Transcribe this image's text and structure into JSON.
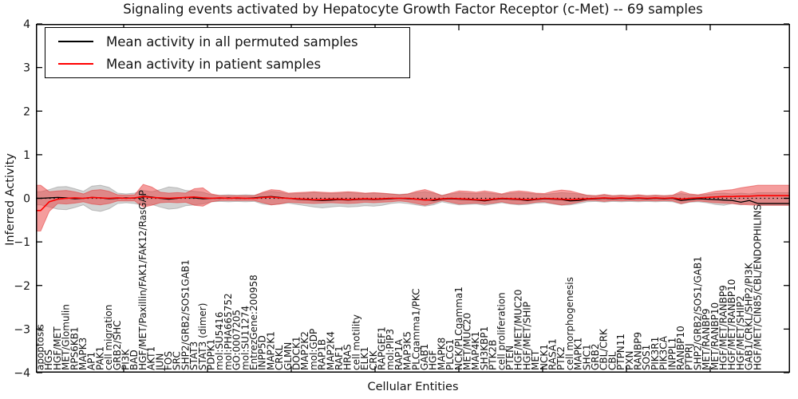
{
  "legend": {
    "items": [
      {
        "label": "Mean activity in all permuted samples",
        "color": "#000000"
      },
      {
        "label": "Mean activity in patient samples",
        "color": "#ff0000"
      }
    ]
  },
  "chart_data": {
    "type": "line",
    "title": "Signaling events activated by Hepatocyte Growth Factor Receptor (c-Met) -- 69 samples",
    "xlabel": "Cellular Entities",
    "ylabel": "Inferred Activity",
    "ylim": [
      -4,
      4
    ],
    "ytick_labels": [
      "4",
      "3",
      "2",
      "1",
      "0",
      "−1",
      "−2",
      "−3",
      "−4"
    ],
    "yticks": [
      4,
      3,
      2,
      1,
      0,
      -1,
      -2,
      -3,
      -4
    ],
    "grid": false,
    "legend_position": "upper left",
    "zero_reference_line": "dotted",
    "categories": [
      "apoptosis",
      "HGS",
      "HGF/MET",
      "MET/Glomulin",
      "RPS6KB1",
      "MAPK3",
      "AP1",
      "PAK1",
      "cell migration",
      "GRB2/SHC",
      "PI3K",
      "BAD",
      "HGF/MET/Paxillin/FAK1/FAK12/RasGAP",
      "AKT1",
      "JUN",
      "FOS",
      "SRC",
      "SHP2/GRB2/SOS1GAB1",
      "STAT3",
      "STAT3 (dimer)",
      "PDPK1",
      "mol:SU5416",
      "mol:PHA665752",
      "GO:0007205",
      "mol:SU11274",
      "EntrezGene:200958",
      "INPP5D",
      "MAP2K1",
      "CRKL",
      "GLMN",
      "DOCK1",
      "MAP2K2",
      "mol:GDP",
      "RAP1B",
      "MAP2K4",
      "RAF1",
      "HRAS",
      "cell motility",
      "ELK1",
      "CRK",
      "RAPGEF1",
      "mol:PIP3",
      "RAP1A",
      "MAP3K5",
      "PLCgamma1/PKC",
      "GAB1",
      "HGF",
      "MAPK8",
      "PLCG1",
      "NCK/PLCgamma1",
      "MET/MUC20",
      "MAP4K1",
      "SH3KBP1",
      "PTK2B",
      "cell proliferation",
      "PTEN",
      "HGF/MET/MUC20",
      "HGF/MET/SHIP",
      "MET",
      "NCK1",
      "RASA1",
      "PTK2",
      "cell morphogenesis",
      "MAPK1",
      "SHC1",
      "GRB2",
      "CBL/CRK",
      "CBL",
      "PTPN11",
      "PXN",
      "RANBP9",
      "SOS1",
      "PIK3R1",
      "PIK3CA",
      "INPPL1",
      "RANBP10",
      "PTPRJ",
      "SHP2/GRB2/SOS1/GAB1",
      "MET/RANBP9",
      "MET/RANBP10",
      "HGF/MET/RANBP9",
      "HGF/MET/RANBP10",
      "HGF/MET/SHIP2",
      "GAB1/CRKL/SHP2/PI3K",
      "HGF/MET/CIN85/CBL/ENDOPHILINS"
    ],
    "series": [
      {
        "name": "Mean activity in all permuted samples",
        "color": "#000000",
        "style": "solid",
        "values": [
          0,
          0.01,
          0.02,
          0.01,
          -0.01,
          0,
          0.02,
          0.01,
          -0.01,
          0,
          0.01,
          0,
          0.05,
          0.03,
          0,
          -0.02,
          0,
          0.02,
          0.01,
          -0.01,
          0,
          0,
          0.01,
          0,
          0,
          0.01,
          0.03,
          0.04,
          0.02,
          0,
          -0.02,
          -0.03,
          -0.04,
          -0.05,
          -0.04,
          -0.03,
          -0.04,
          -0.03,
          -0.02,
          -0.03,
          -0.02,
          -0.01,
          0,
          -0.01,
          -0.02,
          -0.03,
          -0.05,
          -0.02,
          -0.01,
          -0.02,
          -0.03,
          -0.04,
          -0.06,
          -0.03,
          -0.01,
          -0.02,
          -0.03,
          -0.05,
          -0.03,
          -0.01,
          -0.02,
          -0.03,
          -0.06,
          -0.05,
          -0.02,
          -0.01,
          0,
          -0.01,
          0,
          -0.01,
          0,
          -0.01,
          0,
          -0.01,
          0,
          -0.05,
          -0.03,
          -0.01,
          -0.02,
          -0.03,
          -0.04,
          -0.05,
          -0.09,
          -0.05,
          -0.12
        ]
      },
      {
        "name": "Mean activity in patient samples",
        "color": "#ff0000",
        "style": "solid",
        "values": [
          -0.28,
          -0.08,
          -0.02,
          0,
          0.01,
          0,
          0.02,
          0.01,
          0,
          0.01,
          0,
          0.01,
          0.04,
          0.02,
          0.01,
          0,
          0.01,
          0.02,
          0.03,
          0.01,
          0,
          0.01,
          0,
          0.01,
          0,
          0,
          0.02,
          0.03,
          0.01,
          0,
          -0.01,
          -0.02,
          -0.03,
          -0.03,
          -0.02,
          -0.02,
          -0.03,
          -0.02,
          -0.01,
          -0.02,
          -0.01,
          0,
          0,
          0,
          -0.02,
          -0.04,
          -0.03,
          -0.01,
          0,
          -0.01,
          -0.02,
          -0.03,
          -0.04,
          -0.02,
          0,
          -0.01,
          -0.02,
          -0.03,
          -0.02,
          0,
          -0.01,
          -0.02,
          -0.03,
          -0.02,
          -0.01,
          0,
          0.01,
          0,
          0.01,
          0,
          0.01,
          0,
          0.01,
          0,
          0.01,
          -0.02,
          0,
          0.01,
          0.02,
          0.03,
          0.04,
          0.04,
          0.05,
          0.05,
          0.06
        ]
      }
    ],
    "bands": [
      {
        "name": "permuted samples std band",
        "fill": "rgba(128,128,128,0.35)",
        "edge": "rgba(130,130,130,0.45)",
        "upper": [
          0.15,
          0.2,
          0.26,
          0.27,
          0.22,
          0.16,
          0.28,
          0.3,
          0.25,
          0.12,
          0.1,
          0.12,
          0.18,
          0.15,
          0.2,
          0.26,
          0.24,
          0.18,
          0.16,
          0.14,
          0.08,
          0.07,
          0.08,
          0.07,
          0.08,
          0.07,
          0.12,
          0.16,
          0.14,
          0.1,
          0.11,
          0.12,
          0.13,
          0.12,
          0.11,
          0.12,
          0.13,
          0.12,
          0.11,
          0.12,
          0.11,
          0.1,
          0.09,
          0.1,
          0.13,
          0.15,
          0.12,
          0.07,
          0.1,
          0.13,
          0.12,
          0.11,
          0.13,
          0.11,
          0.09,
          0.12,
          0.13,
          0.12,
          0.1,
          0.09,
          0.11,
          0.13,
          0.12,
          0.1,
          0.07,
          0.06,
          0.08,
          0.06,
          0.07,
          0.06,
          0.07,
          0.06,
          0.07,
          0.06,
          0.07,
          0.11,
          0.08,
          0.07,
          0.09,
          0.11,
          0.12,
          0.1,
          0.12,
          0.1,
          0.13
        ],
        "lower": [
          -0.15,
          -0.2,
          -0.25,
          -0.26,
          -0.21,
          -0.15,
          -0.27,
          -0.3,
          -0.24,
          -0.12,
          -0.1,
          -0.12,
          -0.16,
          -0.14,
          -0.2,
          -0.25,
          -0.23,
          -0.17,
          -0.15,
          -0.13,
          -0.08,
          -0.07,
          -0.08,
          -0.07,
          -0.08,
          -0.07,
          -0.13,
          -0.15,
          -0.13,
          -0.11,
          -0.14,
          -0.17,
          -0.2,
          -0.22,
          -0.2,
          -0.18,
          -0.2,
          -0.19,
          -0.17,
          -0.18,
          -0.16,
          -0.12,
          -0.1,
          -0.12,
          -0.15,
          -0.18,
          -0.15,
          -0.08,
          -0.12,
          -0.15,
          -0.14,
          -0.13,
          -0.16,
          -0.13,
          -0.1,
          -0.13,
          -0.15,
          -0.14,
          -0.11,
          -0.1,
          -0.13,
          -0.16,
          -0.15,
          -0.12,
          -0.08,
          -0.07,
          -0.09,
          -0.07,
          -0.08,
          -0.07,
          -0.08,
          -0.07,
          -0.08,
          -0.07,
          -0.08,
          -0.13,
          -0.09,
          -0.08,
          -0.1,
          -0.14,
          -0.16,
          -0.12,
          -0.15,
          -0.12,
          -0.16
        ]
      },
      {
        "name": "patient samples std band",
        "fill": "rgba(235,60,60,0.5)",
        "edge": "rgba(225,60,60,0.55)",
        "upper": [
          0.3,
          0.15,
          0.17,
          0.18,
          0.15,
          0.1,
          0.18,
          0.2,
          0.16,
          0.08,
          0.07,
          0.08,
          0.32,
          0.26,
          0.14,
          0.12,
          0.13,
          0.12,
          0.22,
          0.24,
          0.1,
          0.06,
          0.06,
          0.06,
          0.06,
          0.06,
          0.14,
          0.2,
          0.18,
          0.12,
          0.13,
          0.14,
          0.15,
          0.14,
          0.13,
          0.14,
          0.15,
          0.14,
          0.12,
          0.13,
          0.12,
          0.1,
          0.08,
          0.1,
          0.16,
          0.2,
          0.14,
          0.06,
          0.12,
          0.17,
          0.16,
          0.14,
          0.17,
          0.14,
          0.1,
          0.15,
          0.17,
          0.15,
          0.12,
          0.11,
          0.16,
          0.19,
          0.17,
          0.12,
          0.07,
          0.06,
          0.09,
          0.06,
          0.07,
          0.06,
          0.08,
          0.06,
          0.07,
          0.06,
          0.07,
          0.16,
          0.1,
          0.08,
          0.12,
          0.16,
          0.18,
          0.2,
          0.24,
          0.27,
          0.3
        ],
        "lower": [
          -0.75,
          -0.3,
          -0.12,
          -0.13,
          -0.11,
          -0.08,
          -0.13,
          -0.15,
          -0.12,
          -0.06,
          -0.06,
          -0.06,
          -0.2,
          -0.16,
          -0.1,
          -0.09,
          -0.1,
          -0.09,
          -0.16,
          -0.18,
          -0.08,
          -0.05,
          -0.05,
          -0.05,
          -0.05,
          -0.05,
          -0.1,
          -0.15,
          -0.13,
          -0.09,
          -0.1,
          -0.11,
          -0.12,
          -0.11,
          -0.1,
          -0.11,
          -0.12,
          -0.11,
          -0.09,
          -0.1,
          -0.09,
          -0.08,
          -0.06,
          -0.08,
          -0.12,
          -0.16,
          -0.11,
          -0.05,
          -0.09,
          -0.13,
          -0.12,
          -0.11,
          -0.13,
          -0.11,
          -0.08,
          -0.12,
          -0.13,
          -0.12,
          -0.09,
          -0.08,
          -0.12,
          -0.15,
          -0.13,
          -0.09,
          -0.05,
          -0.05,
          -0.07,
          -0.05,
          -0.06,
          -0.05,
          -0.06,
          -0.05,
          -0.06,
          -0.05,
          -0.06,
          -0.12,
          -0.08,
          -0.06,
          -0.08,
          -0.1,
          -0.11,
          -0.12,
          -0.14,
          -0.15,
          -0.16
        ]
      }
    ]
  }
}
